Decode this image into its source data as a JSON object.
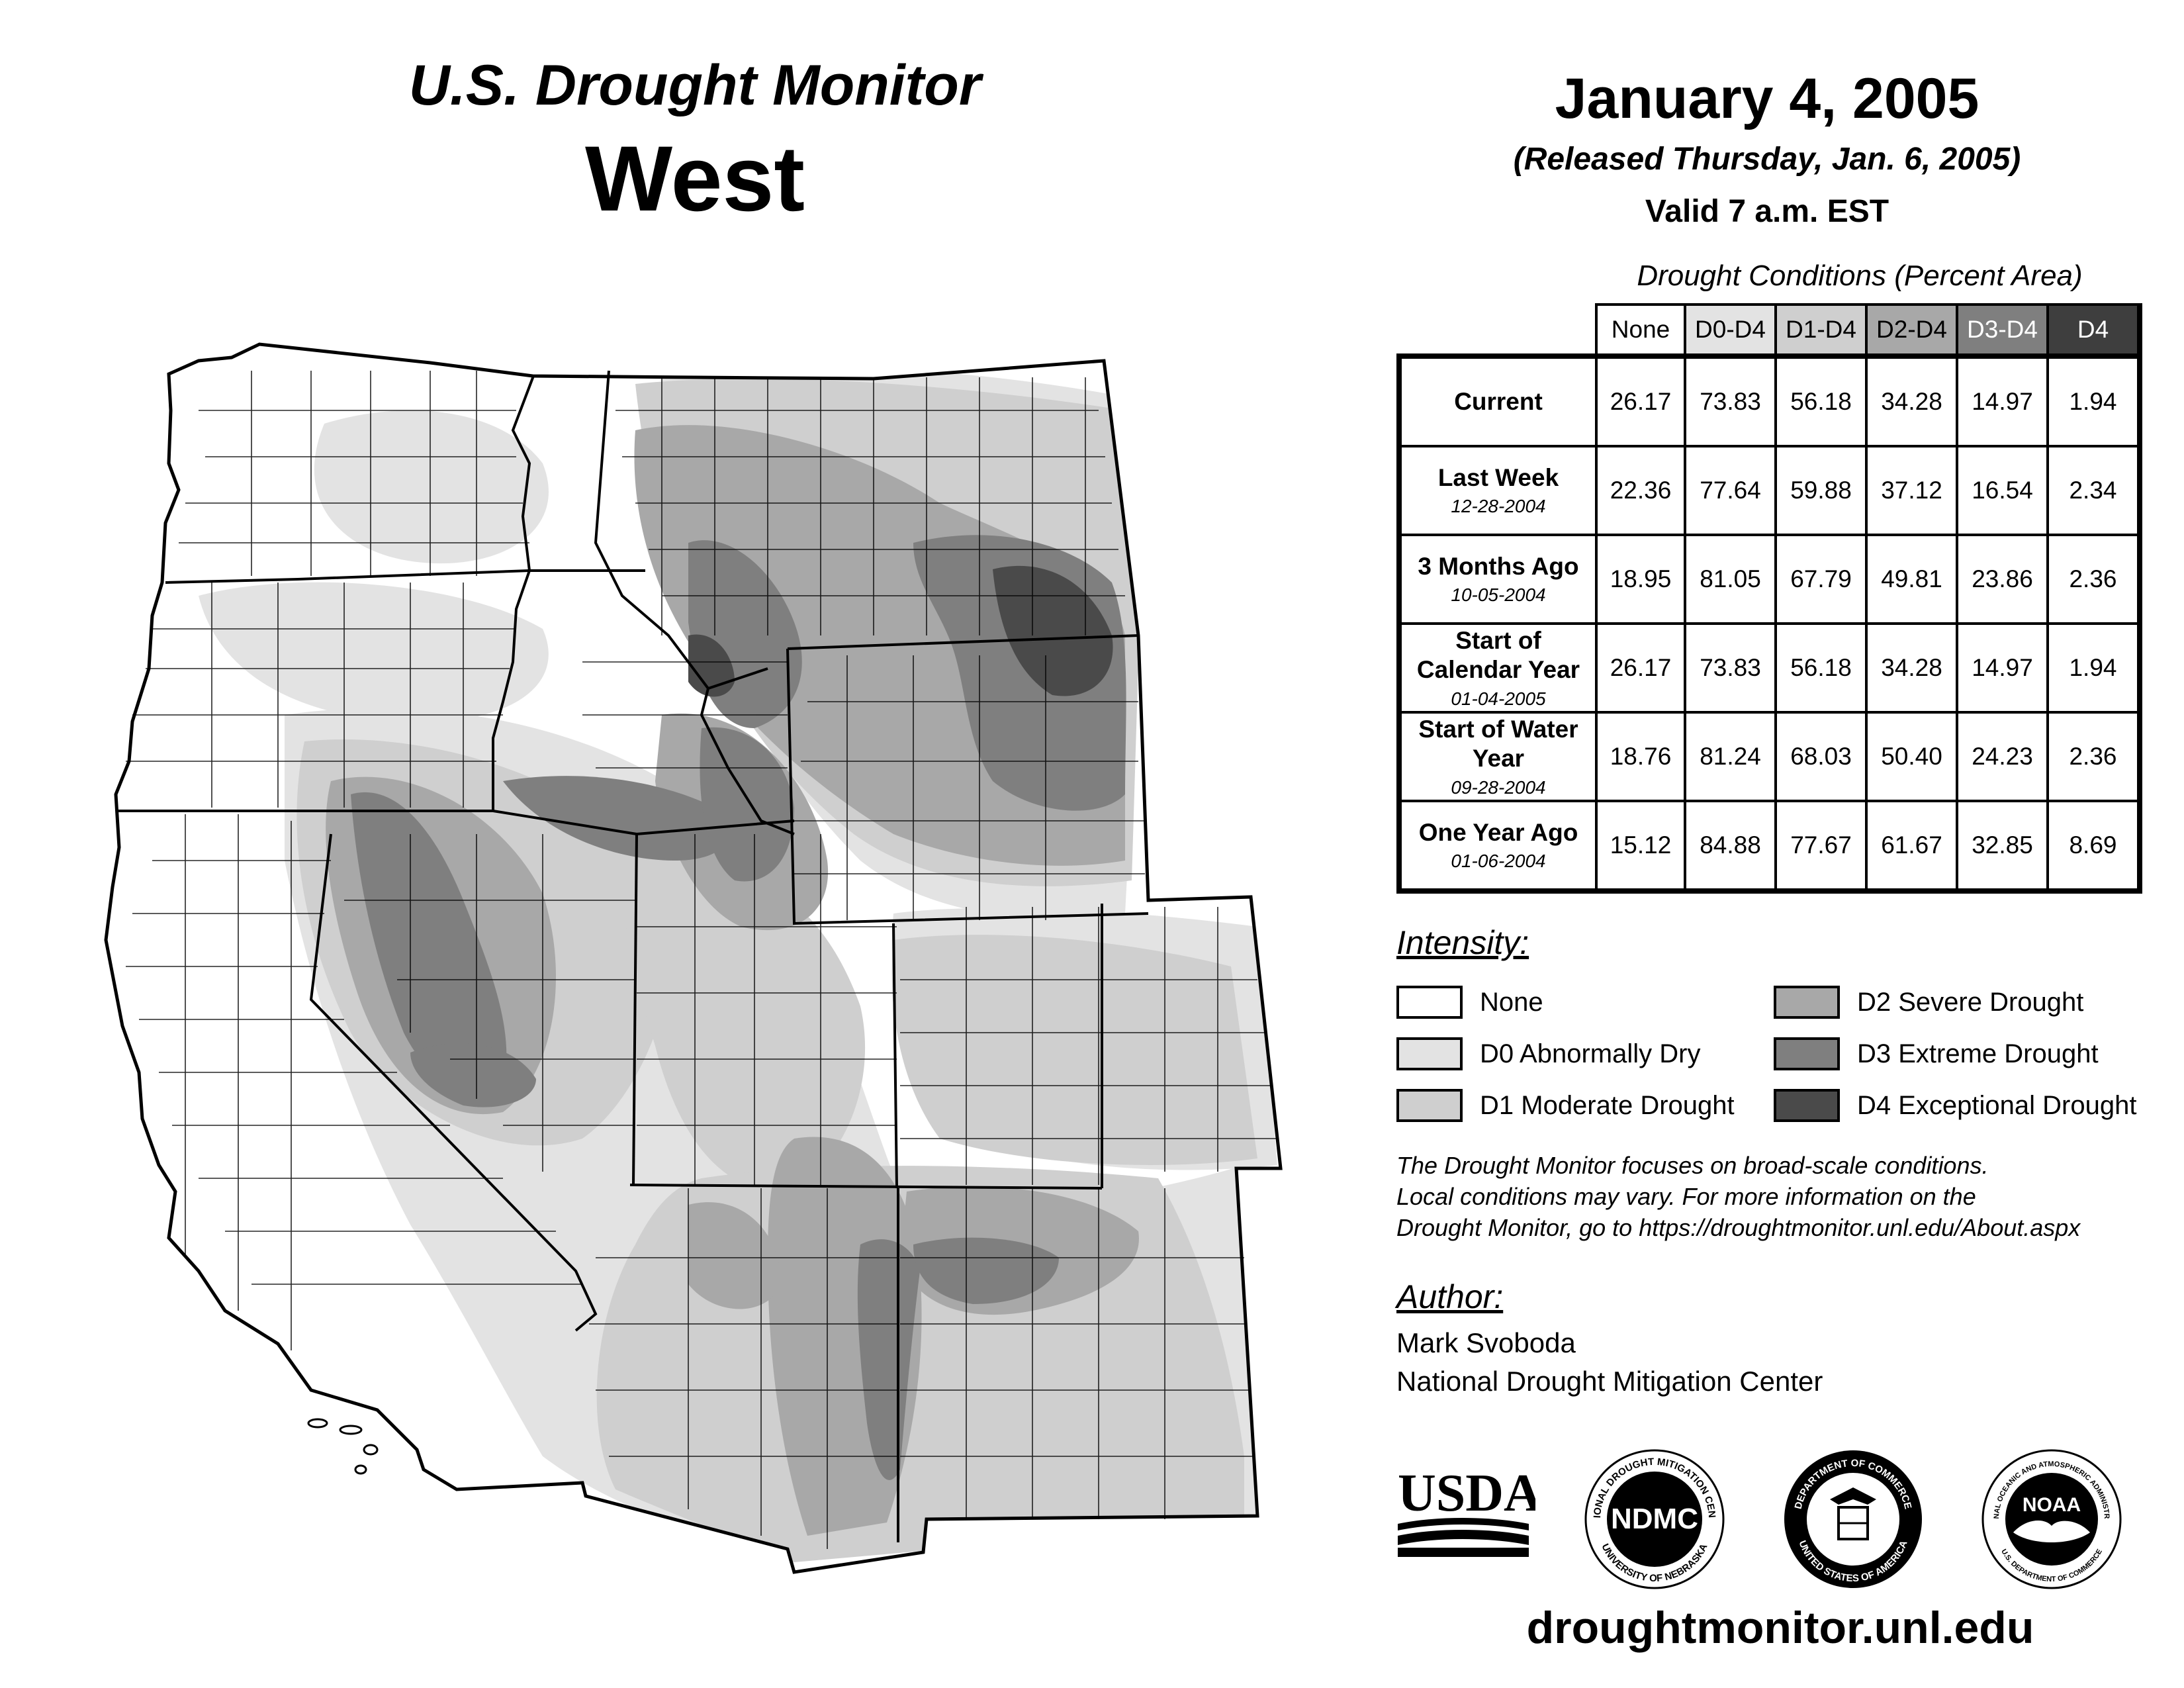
{
  "header": {
    "title_line": "U.S. Drought Monitor",
    "region": "West"
  },
  "date_block": {
    "date": "January 4, 2005",
    "released": "(Released Thursday, Jan. 6, 2005)",
    "valid": "Valid 7 a.m. EST"
  },
  "table": {
    "caption": "Drought Conditions (Percent Area)",
    "columns": [
      "None",
      "D0-D4",
      "D1-D4",
      "D2-D4",
      "D3-D4",
      "D4"
    ],
    "column_colors": [
      "#ffffff",
      "#e3e3e3",
      "#cfcfcf",
      "#a8a8a8",
      "#7f7f7f",
      "#3e3e3e"
    ],
    "rows": [
      {
        "label": "Current",
        "date": "",
        "values": [
          "26.17",
          "73.83",
          "56.18",
          "34.28",
          "14.97",
          "1.94"
        ]
      },
      {
        "label": "Last Week",
        "date": "12-28-2004",
        "values": [
          "22.36",
          "77.64",
          "59.88",
          "37.12",
          "16.54",
          "2.34"
        ]
      },
      {
        "label": "3 Months Ago",
        "date": "10-05-2004",
        "values": [
          "18.95",
          "81.05",
          "67.79",
          "49.81",
          "23.86",
          "2.36"
        ]
      },
      {
        "label": "Start of Calendar Year",
        "date": "01-04-2005",
        "values": [
          "26.17",
          "73.83",
          "56.18",
          "34.28",
          "14.97",
          "1.94"
        ]
      },
      {
        "label": "Start of Water Year",
        "date": "09-28-2004",
        "values": [
          "18.76",
          "81.24",
          "68.03",
          "50.40",
          "24.23",
          "2.36"
        ]
      },
      {
        "label": "One Year Ago",
        "date": "01-06-2004",
        "values": [
          "15.12",
          "84.88",
          "77.67",
          "61.67",
          "32.85",
          "8.69"
        ]
      }
    ]
  },
  "legend": {
    "title": "Intensity:",
    "items": [
      {
        "label": "None",
        "color": "#ffffff"
      },
      {
        "label": "D0 Abnormally Dry",
        "color": "#e3e3e3"
      },
      {
        "label": "D1 Moderate Drought",
        "color": "#cfcfcf"
      },
      {
        "label": "D2 Severe Drought",
        "color": "#a8a8a8"
      },
      {
        "label": "D3 Extreme Drought",
        "color": "#7f7f7f"
      },
      {
        "label": "D4 Exceptional Drought",
        "color": "#4a4a4a"
      }
    ]
  },
  "note": {
    "line1": "The Drought Monitor focuses on broad-scale conditions.",
    "line2": "Local conditions may vary. For more information on the",
    "line3": "Drought Monitor, go to https://droughtmonitor.unl.edu/About.aspx"
  },
  "author": {
    "title": "Author:",
    "name": "Mark Svoboda",
    "org": "National Drought Mitigation Center"
  },
  "logos": {
    "usda": "USDA",
    "ndmc": "NDMC",
    "ndmc_ring_top": "NATIONAL DROUGHT MITIGATION CENTER",
    "ndmc_ring_bottom": "UNIVERSITY OF NEBRASKA",
    "commerce_ring_top": "DEPARTMENT OF COMMERCE",
    "commerce_ring_bottom": "UNITED STATES OF AMERICA",
    "noaa": "NOAA",
    "noaa_ring_top": "NATIONAL OCEANIC AND ATMOSPHERIC ADMINISTRATION",
    "noaa_ring_bottom": "U.S. DEPARTMENT OF COMMERCE"
  },
  "website": "droughtmonitor.unl.edu",
  "map": {
    "colors": {
      "d0": "#e3e3e3",
      "d1": "#cfcfcf",
      "d2": "#a8a8a8",
      "d3": "#7f7f7f",
      "d4": "#4a4a4a"
    }
  }
}
